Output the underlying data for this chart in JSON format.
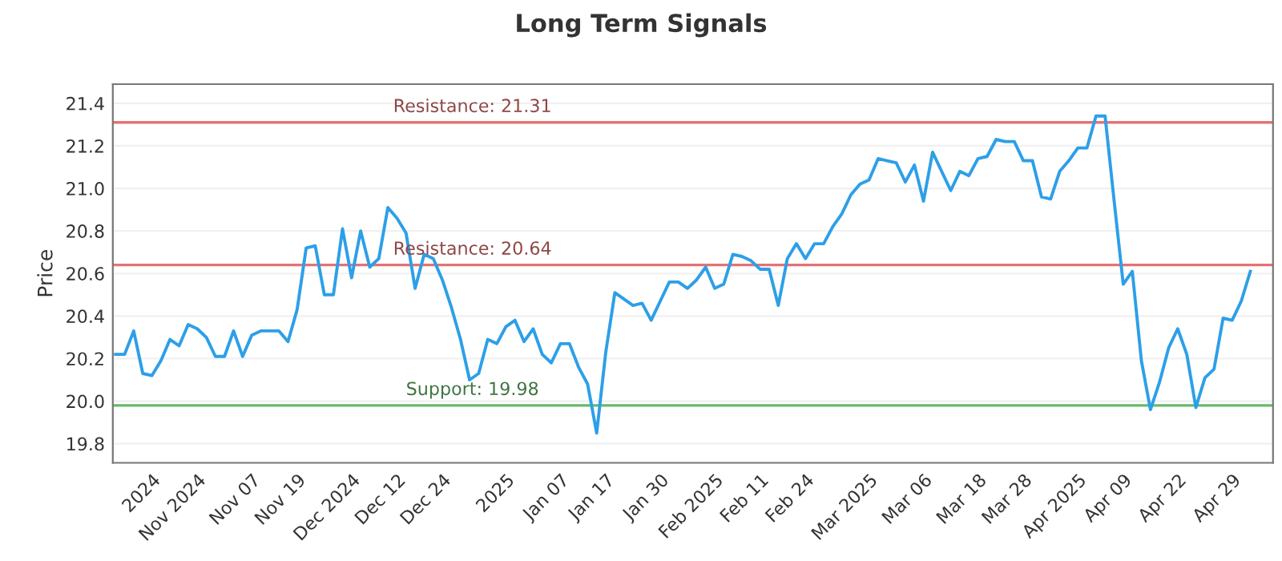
{
  "chart_data": {
    "type": "line",
    "title": "Long Term Signals",
    "ylabel": "Price",
    "categories": [
      null,
      null,
      null,
      null,
      "2024",
      null,
      null,
      null,
      null,
      "Nov 2024",
      null,
      null,
      null,
      null,
      null,
      "Nov 07",
      null,
      null,
      null,
      null,
      "Nov 19",
      null,
      null,
      null,
      null,
      null,
      "Dec 2024",
      null,
      null,
      null,
      null,
      "Dec 12",
      null,
      null,
      null,
      null,
      "Dec 24",
      null,
      null,
      null,
      null,
      null,
      null,
      "2025",
      null,
      null,
      null,
      null,
      null,
      "Jan 07",
      null,
      null,
      null,
      null,
      "Jan 17",
      null,
      null,
      null,
      null,
      null,
      "Jan 30",
      null,
      null,
      null,
      null,
      null,
      "Feb 2025",
      null,
      null,
      null,
      null,
      "Feb 11",
      null,
      null,
      null,
      null,
      "Feb 24",
      null,
      null,
      null,
      null,
      null,
      null,
      "Mar 2025",
      null,
      null,
      null,
      null,
      null,
      "Mar 06",
      null,
      null,
      null,
      null,
      null,
      "Mar 18",
      null,
      null,
      null,
      null,
      "Mar 28",
      null,
      null,
      null,
      null,
      null,
      "Apr 2025",
      null,
      null,
      null,
      null,
      "Apr 09",
      null,
      null,
      null,
      null,
      null,
      "Apr 22",
      null,
      null,
      null,
      null,
      null,
      "Apr 29",
      null,
      null
    ],
    "series": [
      {
        "color": "#2d9fe8",
        "values": [
          20.22,
          20.22,
          20.33,
          20.13,
          20.12,
          20.19,
          20.29,
          20.26,
          20.36,
          20.34,
          20.3,
          20.21,
          20.21,
          20.33,
          20.21,
          20.31,
          20.33,
          20.33,
          20.33,
          20.28,
          20.43,
          20.72,
          20.73,
          20.5,
          20.5,
          20.81,
          20.58,
          20.8,
          20.63,
          20.67,
          20.91,
          20.86,
          20.79,
          20.53,
          20.69,
          20.67,
          20.57,
          20.44,
          20.29,
          20.1,
          20.13,
          20.29,
          20.27,
          20.35,
          20.38,
          20.28,
          20.34,
          20.22,
          20.18,
          20.27,
          20.27,
          20.16,
          20.08,
          19.85,
          20.23,
          20.51,
          20.48,
          20.45,
          20.46,
          20.38,
          20.47,
          20.56,
          20.56,
          20.53,
          20.57,
          20.63,
          20.53,
          20.55,
          20.69,
          20.68,
          20.66,
          20.62,
          20.62,
          20.45,
          20.67,
          20.74,
          20.67,
          20.74,
          20.74,
          20.82,
          20.88,
          20.97,
          21.02,
          21.04,
          21.14,
          21.13,
          21.12,
          21.03,
          21.11,
          20.94,
          21.17,
          21.08,
          20.99,
          21.08,
          21.06,
          21.14,
          21.15,
          21.23,
          21.22,
          21.22,
          21.13,
          21.13,
          20.96,
          20.95,
          21.08,
          21.13,
          21.19,
          21.19,
          21.34,
          21.34,
          20.94,
          20.55,
          20.61,
          20.19,
          19.96,
          20.09,
          20.25,
          20.34,
          20.22,
          19.97,
          20.11,
          20.15,
          20.39,
          20.38,
          20.47,
          20.61
        ]
      }
    ],
    "ylim": [
      19.71,
      21.49
    ],
    "yticks": [
      19.8,
      {
        "value": 20,
        "label": "20.0"
      },
      20.2,
      20.4,
      20.6,
      20.8,
      {
        "value": 21,
        "label": "21.0"
      },
      21.2,
      21.4
    ],
    "grid": "y",
    "ref_lines": [
      {
        "axis": "y",
        "value": 21.31,
        "label": "Resistance: 21.31",
        "color": "#e57373"
      },
      {
        "axis": "y",
        "value": 20.64,
        "label": "Resistance: 20.64",
        "color": "#e57373"
      },
      {
        "axis": "y",
        "value": 19.98,
        "label": "Support: 19.98",
        "color": "#66bb6a"
      }
    ]
  }
}
